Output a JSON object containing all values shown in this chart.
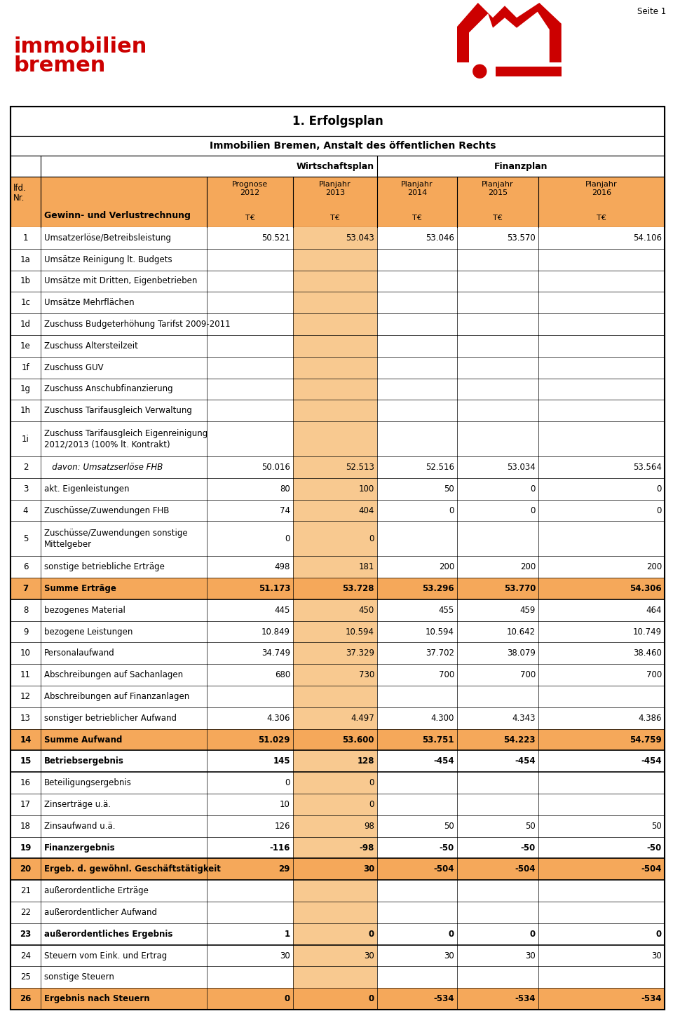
{
  "title1": "1. Erfolgsplan",
  "title2": "Immobilien Bremen, Anstalt des öffentlichen Rechts",
  "wirtschaftsplan_label": "Wirtschaftsplan",
  "finanzplan_label": "Finanzplan",
  "orange_header": "#F5A85A",
  "orange_light": "#F8C990",
  "page_label": "Seite 1",
  "red_color": "#CC0000",
  "rows": [
    {
      "nr": "1",
      "desc": "Umsatzerlöse/Betreibsleistung",
      "v2012": "50.521",
      "v2013": "53.043",
      "v2014": "53.046",
      "v2015": "53.570",
      "v2016": "54.106",
      "bold": false,
      "highlight": false,
      "italic": false
    },
    {
      "nr": "1a",
      "desc": "Umsätze Reinigung lt. Budgets",
      "v2012": "",
      "v2013": "",
      "v2014": "",
      "v2015": "",
      "v2016": "",
      "bold": false,
      "highlight": false,
      "italic": false
    },
    {
      "nr": "1b",
      "desc": "Umsätze mit Dritten, Eigenbetrieben",
      "v2012": "",
      "v2013": "",
      "v2014": "",
      "v2015": "",
      "v2016": "",
      "bold": false,
      "highlight": false,
      "italic": false
    },
    {
      "nr": "1c",
      "desc": "Umsätze Mehrflächen",
      "v2012": "",
      "v2013": "",
      "v2014": "",
      "v2015": "",
      "v2016": "",
      "bold": false,
      "highlight": false,
      "italic": false
    },
    {
      "nr": "1d",
      "desc": "Zuschuss Budgeterhöhung Tarifst 2009-2011",
      "v2012": "",
      "v2013": "",
      "v2014": "",
      "v2015": "",
      "v2016": "",
      "bold": false,
      "highlight": false,
      "italic": false
    },
    {
      "nr": "1e",
      "desc": "Zuschuss Altersteilzeit",
      "v2012": "",
      "v2013": "",
      "v2014": "",
      "v2015": "",
      "v2016": "",
      "bold": false,
      "highlight": false,
      "italic": false
    },
    {
      "nr": "1f",
      "desc": "Zuschuss GUV",
      "v2012": "",
      "v2013": "",
      "v2014": "",
      "v2015": "",
      "v2016": "",
      "bold": false,
      "highlight": false,
      "italic": false
    },
    {
      "nr": "1g",
      "desc": "Zuschuss Anschubfinanzierung",
      "v2012": "",
      "v2013": "",
      "v2014": "",
      "v2015": "",
      "v2016": "",
      "bold": false,
      "highlight": false,
      "italic": false
    },
    {
      "nr": "1h",
      "desc": "Zuschuss Tarifausgleich Verwaltung",
      "v2012": "",
      "v2013": "",
      "v2014": "",
      "v2015": "",
      "v2016": "",
      "bold": false,
      "highlight": false,
      "italic": false
    },
    {
      "nr": "1i",
      "desc": "Zuschuss Tarifausgleich Eigenreinigung\n2012/2013 (100% lt. Kontrakt)",
      "v2012": "",
      "v2013": "",
      "v2014": "",
      "v2015": "",
      "v2016": "",
      "bold": false,
      "highlight": false,
      "italic": false
    },
    {
      "nr": "2",
      "desc": "   davon: Umsatzserlöse FHB",
      "v2012": "50.016",
      "v2013": "52.513",
      "v2014": "52.516",
      "v2015": "53.034",
      "v2016": "53.564",
      "bold": false,
      "highlight": false,
      "italic": true
    },
    {
      "nr": "3",
      "desc": "akt. Eigenleistungen",
      "v2012": "80",
      "v2013": "100",
      "v2014": "50",
      "v2015": "0",
      "v2016": "0",
      "bold": false,
      "highlight": false,
      "italic": false
    },
    {
      "nr": "4",
      "desc": "Zuschüsse/Zuwendungen FHB",
      "v2012": "74",
      "v2013": "404",
      "v2014": "0",
      "v2015": "0",
      "v2016": "0",
      "bold": false,
      "highlight": false,
      "italic": false
    },
    {
      "nr": "5",
      "desc": "Zuschüsse/Zuwendungen sonstige\nMittelgeber",
      "v2012": "0",
      "v2013": "0",
      "v2014": "",
      "v2015": "",
      "v2016": "",
      "bold": false,
      "highlight": false,
      "italic": false
    },
    {
      "nr": "6",
      "desc": "sonstige betriebliche Erträge",
      "v2012": "498",
      "v2013": "181",
      "v2014": "200",
      "v2015": "200",
      "v2016": "200",
      "bold": false,
      "highlight": false,
      "italic": false
    },
    {
      "nr": "7",
      "desc": "Summe Erträge",
      "v2012": "51.173",
      "v2013": "53.728",
      "v2014": "53.296",
      "v2015": "53.770",
      "v2016": "54.306",
      "bold": true,
      "highlight": true,
      "italic": false
    },
    {
      "nr": "8",
      "desc": "bezogenes Material",
      "v2012": "445",
      "v2013": "450",
      "v2014": "455",
      "v2015": "459",
      "v2016": "464",
      "bold": false,
      "highlight": false,
      "italic": false
    },
    {
      "nr": "9",
      "desc": "bezogene Leistungen",
      "v2012": "10.849",
      "v2013": "10.594",
      "v2014": "10.594",
      "v2015": "10.642",
      "v2016": "10.749",
      "bold": false,
      "highlight": false,
      "italic": false
    },
    {
      "nr": "10",
      "desc": "Personalaufwand",
      "v2012": "34.749",
      "v2013": "37.329",
      "v2014": "37.702",
      "v2015": "38.079",
      "v2016": "38.460",
      "bold": false,
      "highlight": false,
      "italic": false
    },
    {
      "nr": "11",
      "desc": "Abschreibungen auf Sachanlagen",
      "v2012": "680",
      "v2013": "730",
      "v2014": "700",
      "v2015": "700",
      "v2016": "700",
      "bold": false,
      "highlight": false,
      "italic": false
    },
    {
      "nr": "12",
      "desc": "Abschreibungen auf Finanzanlagen",
      "v2012": "",
      "v2013": "",
      "v2014": "",
      "v2015": "",
      "v2016": "",
      "bold": false,
      "highlight": false,
      "italic": false
    },
    {
      "nr": "13",
      "desc": "sonstiger betrieblicher Aufwand",
      "v2012": "4.306",
      "v2013": "4.497",
      "v2014": "4.300",
      "v2015": "4.343",
      "v2016": "4.386",
      "bold": false,
      "highlight": false,
      "italic": false
    },
    {
      "nr": "14",
      "desc": "Summe Aufwand",
      "v2012": "51.029",
      "v2013": "53.600",
      "v2014": "53.751",
      "v2015": "54.223",
      "v2016": "54.759",
      "bold": true,
      "highlight": true,
      "italic": false
    },
    {
      "nr": "15",
      "desc": "Betriebsergebnis",
      "v2012": "145",
      "v2013": "128",
      "v2014": "-454",
      "v2015": "-454",
      "v2016": "-454",
      "bold": true,
      "highlight": false,
      "italic": false
    },
    {
      "nr": "16",
      "desc": "Beteiligungsergebnis",
      "v2012": "0",
      "v2013": "0",
      "v2014": "",
      "v2015": "",
      "v2016": "",
      "bold": false,
      "highlight": false,
      "italic": false
    },
    {
      "nr": "17",
      "desc": "Zinserträge u.ä.",
      "v2012": "10",
      "v2013": "0",
      "v2014": "",
      "v2015": "",
      "v2016": "",
      "bold": false,
      "highlight": false,
      "italic": false
    },
    {
      "nr": "18",
      "desc": "Zinsaufwand u.ä.",
      "v2012": "126",
      "v2013": "98",
      "v2014": "50",
      "v2015": "50",
      "v2016": "50",
      "bold": false,
      "highlight": false,
      "italic": false
    },
    {
      "nr": "19",
      "desc": "Finanzergebnis",
      "v2012": "-116",
      "v2013": "-98",
      "v2014": "-50",
      "v2015": "-50",
      "v2016": "-50",
      "bold": true,
      "highlight": false,
      "italic": false
    },
    {
      "nr": "20",
      "desc": "Ergeb. d. gewöhnl. Geschäftstätigkeit",
      "v2012": "29",
      "v2013": "30",
      "v2014": "-504",
      "v2015": "-504",
      "v2016": "-504",
      "bold": true,
      "highlight": true,
      "italic": false
    },
    {
      "nr": "21",
      "desc": "außerordentliche Erträge",
      "v2012": "",
      "v2013": "",
      "v2014": "",
      "v2015": "",
      "v2016": "",
      "bold": false,
      "highlight": false,
      "italic": false
    },
    {
      "nr": "22",
      "desc": "außerordentlicher Aufwand",
      "v2012": "",
      "v2013": "",
      "v2014": "",
      "v2015": "",
      "v2016": "",
      "bold": false,
      "highlight": false,
      "italic": false
    },
    {
      "nr": "23",
      "desc": "außerordentliches Ergebnis",
      "v2012": "1",
      "v2013": "0",
      "v2014": "0",
      "v2015": "0",
      "v2016": "0",
      "bold": true,
      "highlight": false,
      "italic": false
    },
    {
      "nr": "24",
      "desc": "Steuern vom Eink. und Ertrag",
      "v2012": "30",
      "v2013": "30",
      "v2014": "30",
      "v2015": "30",
      "v2016": "30",
      "bold": false,
      "highlight": false,
      "italic": false
    },
    {
      "nr": "25",
      "desc": "sonstige Steuern",
      "v2012": "",
      "v2013": "",
      "v2014": "",
      "v2015": "",
      "v2016": "",
      "bold": false,
      "highlight": false,
      "italic": false
    },
    {
      "nr": "26",
      "desc": "Ergebnis nach Steuern",
      "v2012": "0",
      "v2013": "0",
      "v2014": "-534",
      "v2015": "-534",
      "v2016": "-534",
      "bold": true,
      "highlight": true,
      "italic": false
    }
  ]
}
